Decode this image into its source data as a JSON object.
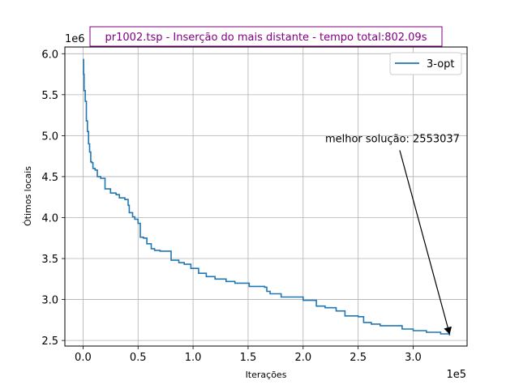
{
  "chart_data": {
    "type": "line",
    "title": "pr1002.tsp - Inserção do mais distante - tempo total:802.09s",
    "title_color": "#800080",
    "xlabel": "Iterações",
    "ylabel": "Ótimos locais",
    "x_offset_label": "1e5",
    "y_offset_label": "1e6",
    "xlim": [
      -16500,
      349000
    ],
    "ylim": [
      2432000,
      6082000
    ],
    "x_ticks": [
      0,
      50000,
      100000,
      150000,
      200000,
      250000,
      300000
    ],
    "x_tick_labels": [
      "0.0",
      "0.5",
      "1.0",
      "1.5",
      "2.0",
      "2.5",
      "3.0"
    ],
    "y_ticks": [
      2500000,
      3000000,
      3500000,
      4000000,
      4500000,
      5000000,
      5500000,
      6000000
    ],
    "y_tick_labels": [
      "2.5",
      "3.0",
      "3.5",
      "4.0",
      "4.5",
      "5.0",
      "5.5",
      "6.0"
    ],
    "grid": true,
    "legend_position": "top-right",
    "series": [
      {
        "name": "3-opt",
        "color": "#1f77b4",
        "x": [
          0,
          500,
          1000,
          2000,
          3000,
          4000,
          5000,
          6000,
          7000,
          8000,
          9000,
          11000,
          13000,
          16000,
          20000,
          25000,
          30000,
          33000,
          38000,
          41000,
          42000,
          45000,
          47000,
          50000,
          52000,
          55000,
          58000,
          62000,
          65000,
          70000,
          80000,
          87000,
          92000,
          98000,
          105000,
          112000,
          120000,
          130000,
          138000,
          151000,
          165000,
          167000,
          170000,
          180000,
          200000,
          212000,
          220000,
          230000,
          238000,
          250000,
          255000,
          262000,
          270000,
          290000,
          300000,
          312000,
          325000,
          333000
        ],
        "y": [
          5930000,
          5750000,
          5550000,
          5420000,
          5180000,
          5050000,
          4900000,
          4800000,
          4680000,
          4670000,
          4600000,
          4580000,
          4500000,
          4480000,
          4350000,
          4300000,
          4280000,
          4240000,
          4220000,
          4150000,
          4060000,
          4010000,
          3980000,
          3930000,
          3760000,
          3750000,
          3680000,
          3620000,
          3600000,
          3590000,
          3480000,
          3450000,
          3430000,
          3380000,
          3320000,
          3280000,
          3250000,
          3220000,
          3200000,
          3160000,
          3150000,
          3100000,
          3070000,
          3030000,
          2990000,
          2920000,
          2900000,
          2860000,
          2800000,
          2790000,
          2720000,
          2700000,
          2680000,
          2640000,
          2620000,
          2600000,
          2580000,
          2560000
        ]
      }
    ],
    "annotation": {
      "text": "melhor solução: 2553037",
      "text_x": 220000,
      "text_y": 4920000,
      "point_x": 333000,
      "point_y": 2553037
    }
  }
}
